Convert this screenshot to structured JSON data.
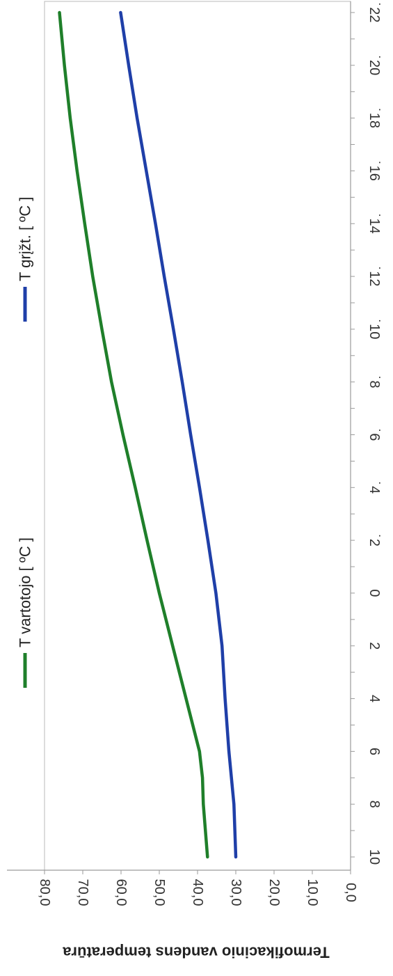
{
  "chart_data": {
    "type": "line",
    "orientation": "rotated-90-clockwise",
    "title": "",
    "ylabel": "Termofikacinio vandens temperatūra",
    "xlabel": "",
    "ylim": [
      0,
      80
    ],
    "yticks": [
      "0,0",
      "10,0",
      "20,0",
      "30,0",
      "40,0",
      "50,0",
      "60,0",
      "70,0",
      "80,0"
    ],
    "xlim": [
      10,
      -22
    ],
    "xticks": [
      "10",
      "8",
      "6",
      "4",
      "2",
      "0",
      "-2",
      "-4",
      "-6",
      "-8",
      "-10",
      "-12",
      "-14",
      "-16",
      "-18",
      "-20",
      "-22"
    ],
    "xtick_display": [
      "10",
      "8",
      "6",
      "4",
      "2",
      "0",
      "˙2",
      "˙4",
      "˙6",
      "˙8",
      "˙10",
      "˙12",
      "˙14",
      "˙16",
      "˙18",
      "˙20",
      "˙22"
    ],
    "grid": false,
    "legend_placement": "top",
    "series": [
      {
        "name": "T vartotojo [ ºC ]",
        "color": "#1f7f2a",
        "x": [
          10,
          8,
          7,
          6,
          4,
          2,
          0,
          -2,
          -4,
          -6,
          -8,
          -10,
          -12,
          -14,
          -16,
          -18,
          -20,
          -22
        ],
        "values": [
          37.4,
          38.5,
          38.7,
          39.5,
          43.0,
          46.5,
          50.0,
          53.2,
          56.3,
          59.5,
          62.5,
          65.0,
          67.4,
          69.5,
          71.5,
          73.3,
          74.8,
          76.1
        ]
      },
      {
        "name": "T grįžt. [ ºC ]",
        "color": "#1f3fa8",
        "x": [
          10,
          8,
          6,
          4,
          2,
          0,
          -2,
          -4,
          -6,
          -8,
          -10,
          -12,
          -14,
          -16,
          -18,
          -20,
          -22
        ],
        "values": [
          30.0,
          30.5,
          31.8,
          32.8,
          33.6,
          35.2,
          37.3,
          39.5,
          41.8,
          44.0,
          46.3,
          48.7,
          51.0,
          53.4,
          55.8,
          58.0,
          60.1
        ]
      }
    ]
  }
}
